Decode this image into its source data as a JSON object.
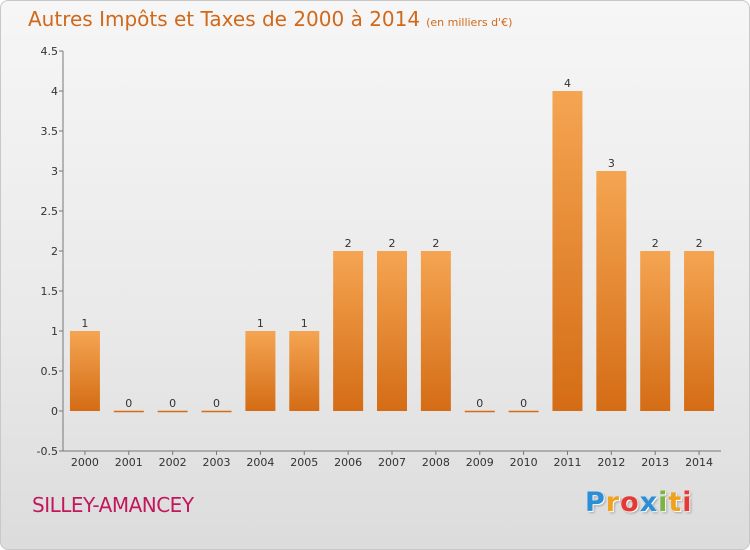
{
  "chart_data": {
    "type": "bar",
    "title": "Autres Impôts et Taxes de 2000 à 2014",
    "unit": "(en milliers d'€)",
    "categories": [
      "2000",
      "2001",
      "2002",
      "2003",
      "2004",
      "2005",
      "2006",
      "2007",
      "2008",
      "2009",
      "2010",
      "2011",
      "2012",
      "2013",
      "2014"
    ],
    "values": [
      1,
      0,
      0,
      0,
      1,
      1,
      2,
      2,
      2,
      0,
      0,
      4,
      3,
      2,
      2
    ],
    "ylim": [
      -0.5,
      4.5
    ],
    "yticks": [
      "-0.5",
      "0",
      "0.5",
      "1",
      "1.5",
      "2",
      "2.5",
      "3",
      "3.5",
      "4",
      "4.5"
    ],
    "grid": false,
    "colors": {
      "bar_top": "#f5a552",
      "bar_bottom": "#d46c15",
      "zero_bar": "#d46c15"
    }
  },
  "footer": {
    "place": "SILLEY-AMANCEY",
    "logo": [
      "P",
      "r",
      "o",
      "x",
      "i",
      "t",
      "i"
    ],
    "logo_colors": [
      "#2b8fd8",
      "#f0a21f",
      "#e53935",
      "#2b8fd8",
      "#7cb342",
      "#f0a21f",
      "#e53935"
    ]
  }
}
